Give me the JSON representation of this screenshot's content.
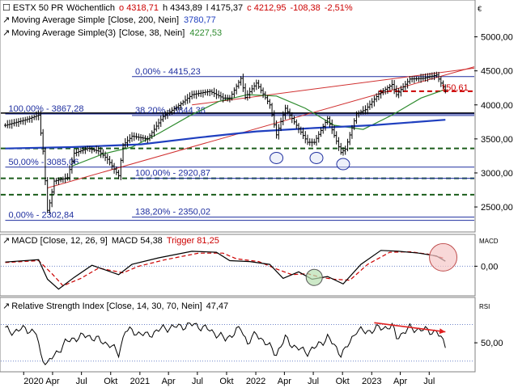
{
  "chart_data": [
    {
      "type": "candlestick",
      "panel": "price",
      "header": {
        "instrument": "ESTX 50 PR",
        "period": "Wöchentlich",
        "open": "o 4318,71",
        "high": "h 4343,89",
        "low": "l 4175,37",
        "close": "c 4212,95",
        "change": "-108,38",
        "change_pct": "-2,51%",
        "currency": "€"
      },
      "indicators": [
        {
          "label": "Moving Average Simple",
          "params": "[Close, 200, Nein]",
          "value": "3780,77",
          "color": "#1f3fbf"
        },
        {
          "label": "Moving Average Simple(3)",
          "params": "[Close, 38, Nein]",
          "value": "4227,53",
          "color": "#2e8b2e"
        }
      ],
      "y_ticks": [
        "5000,00",
        "4500,00",
        "4000,00",
        "3500,00",
        "3000,00",
        "2500,00"
      ],
      "ylim": [
        2180,
        5280
      ],
      "x_ticks": [
        "2020",
        "Apr",
        "Jul",
        "Okt",
        "2021",
        "Apr",
        "Jul",
        "Okt",
        "2022",
        "Apr",
        "Jul",
        "Okt",
        "2023",
        "Apr",
        "Jul"
      ],
      "x_tick_dates": [
        "2020-01-01",
        "2020-04-01",
        "2020-07-01",
        "2020-10-01",
        "2021-01-01",
        "2021-04-01",
        "2021-07-01",
        "2021-10-01",
        "2022-01-01",
        "2022-04-01",
        "2022-07-01",
        "2022-10-01",
        "2023-01-01",
        "2023-04-01",
        "2023-07-01"
      ],
      "xlim": [
        "2019-10-21",
        "2023-11-20"
      ],
      "grid": false,
      "close_series": [
        [
          "2019-11-04",
          3700
        ],
        [
          "2020-01-06",
          3780
        ],
        [
          "2020-02-17",
          3850
        ],
        [
          "2020-03-02",
          3320
        ],
        [
          "2020-03-16",
          2450
        ],
        [
          "2020-03-23",
          2560
        ],
        [
          "2020-04-06",
          2880
        ],
        [
          "2020-05-18",
          2930
        ],
        [
          "2020-06-08",
          3290
        ],
        [
          "2020-07-20",
          3360
        ],
        [
          "2020-08-24",
          3320
        ],
        [
          "2020-09-21",
          3200
        ],
        [
          "2020-10-26",
          2960
        ],
        [
          "2020-11-09",
          3410
        ],
        [
          "2020-12-07",
          3540
        ],
        [
          "2021-01-25",
          3500
        ],
        [
          "2021-03-15",
          3830
        ],
        [
          "2021-05-03",
          3990
        ],
        [
          "2021-06-14",
          4150
        ],
        [
          "2021-08-09",
          4200
        ],
        [
          "2021-09-20",
          4100
        ],
        [
          "2021-10-11",
          4100
        ],
        [
          "2021-11-15",
          4390
        ],
        [
          "2021-11-29",
          4110
        ],
        [
          "2022-01-03",
          4320
        ],
        [
          "2022-02-14",
          4000
        ],
        [
          "2022-03-07",
          3560
        ],
        [
          "2022-04-04",
          3950
        ],
        [
          "2022-05-09",
          3700
        ],
        [
          "2022-06-13",
          3450
        ],
        [
          "2022-07-04",
          3450
        ],
        [
          "2022-08-15",
          3800
        ],
        [
          "2022-09-26",
          3300
        ],
        [
          "2022-10-10",
          3350
        ],
        [
          "2022-11-14",
          3870
        ],
        [
          "2022-12-12",
          3930
        ],
        [
          "2023-01-23",
          4160
        ],
        [
          "2023-03-06",
          4300
        ],
        [
          "2023-03-20",
          4150
        ],
        [
          "2023-05-01",
          4380
        ],
        [
          "2023-06-12",
          4390
        ],
        [
          "2023-07-24",
          4440
        ],
        [
          "2023-08-07",
          4320
        ],
        [
          "2023-08-21",
          4213
        ]
      ],
      "ma200_series": [
        [
          "2019-11-04",
          3360
        ],
        [
          "2020-06-01",
          3380
        ],
        [
          "2021-01-04",
          3420
        ],
        [
          "2021-07-05",
          3520
        ],
        [
          "2022-01-03",
          3610
        ],
        [
          "2022-07-04",
          3660
        ],
        [
          "2023-01-02",
          3700
        ],
        [
          "2023-08-21",
          3781
        ]
      ],
      "ma38_series": [
        [
          "2020-06-01",
          3100
        ],
        [
          "2020-09-07",
          3280
        ],
        [
          "2020-12-07",
          3380
        ],
        [
          "2021-03-01",
          3580
        ],
        [
          "2021-06-07",
          3840
        ],
        [
          "2021-09-06",
          4050
        ],
        [
          "2021-12-06",
          4150
        ],
        [
          "2022-03-07",
          4130
        ],
        [
          "2022-06-06",
          3950
        ],
        [
          "2022-09-05",
          3700
        ],
        [
          "2022-12-05",
          3640
        ],
        [
          "2023-03-06",
          3850
        ],
        [
          "2023-06-05",
          4100
        ],
        [
          "2023-08-21",
          4228
        ]
      ],
      "fibonacci": [
        {
          "label": "0,00% - 4415,23",
          "value": 4415.23,
          "from": "2020-12-07"
        },
        {
          "label": "38,20% - 3844,38",
          "value": 3844.38,
          "from": "2020-12-07"
        },
        {
          "label": "100,00% - 2920,87",
          "value": 2920.87,
          "from": "2020-12-07"
        },
        {
          "label": "138,20% - 2350,02",
          "value": 2350.02,
          "from": "2020-12-07"
        },
        {
          "label": "100,00% - 3867,28",
          "value": 3867.28,
          "from": "2019-11-04"
        },
        {
          "label": "50,00% - 3085,06",
          "value": 3085.06,
          "from": "2019-11-04"
        },
        {
          "label": "0,00% - 2302,84",
          "value": 2302.84,
          "from": "2019-11-04"
        }
      ],
      "horizontal_lines": [
        {
          "value": 3880,
          "style": "solid",
          "color": "#000000"
        },
        {
          "value": 3360,
          "style": "dashed",
          "color": "#1a5c1a"
        },
        {
          "value": 2920.87,
          "style": "dashed",
          "color": "#1a5c1a"
        },
        {
          "value": 2680,
          "style": "dashed",
          "color": "#1a5c1a"
        },
        {
          "value": 4200,
          "style": "dashed",
          "color": "#cc0000",
          "from": "2023-01-23"
        }
      ],
      "trend_lines": [
        {
          "from": [
            "2020-03-16",
            2780
          ],
          "to": [
            "2023-11-20",
            4560
          ],
          "color": "#d03030"
        },
        {
          "from": [
            "2021-06-14",
            4000
          ],
          "to": [
            "2023-11-20",
            4540
          ],
          "color": "#d03030"
        }
      ],
      "annotation": {
        "label": "150,61",
        "value": 4260
      },
      "markers": [
        {
          "type": "circle",
          "date": "2022-03-07",
          "value": 3220
        },
        {
          "type": "circle",
          "date": "2022-07-11",
          "value": 3220
        },
        {
          "type": "circle",
          "date": "2022-10-03",
          "value": 3130
        }
      ]
    },
    {
      "type": "line",
      "panel": "macd",
      "title": "MACD [Close, 12, 26, 9]",
      "macd_label": "MACD 54,38",
      "trigger_label": "Trigger 81,25",
      "side_label": "MACD",
      "y_ticks": [
        "0,00"
      ],
      "ylim": [
        -300,
        220
      ],
      "series": [
        {
          "name": "MACD",
          "color": "#000000",
          "points": [
            [
              "2019-11-04",
              45
            ],
            [
              "2020-02-17",
              70
            ],
            [
              "2020-03-16",
              -140
            ],
            [
              "2020-04-20",
              -245
            ],
            [
              "2020-06-08",
              -120
            ],
            [
              "2020-08-03",
              10
            ],
            [
              "2020-10-26",
              -90
            ],
            [
              "2020-12-07",
              20
            ],
            [
              "2021-03-01",
              90
            ],
            [
              "2021-06-14",
              160
            ],
            [
              "2021-08-30",
              150
            ],
            [
              "2021-10-11",
              60
            ],
            [
              "2021-12-13",
              50
            ],
            [
              "2022-02-14",
              20
            ],
            [
              "2022-03-28",
              -130
            ],
            [
              "2022-05-16",
              -60
            ],
            [
              "2022-06-27",
              -140
            ],
            [
              "2022-08-15",
              -110
            ],
            [
              "2022-10-03",
              -190
            ],
            [
              "2022-11-28",
              20
            ],
            [
              "2023-01-30",
              170
            ],
            [
              "2023-03-27",
              160
            ],
            [
              "2023-05-29",
              140
            ],
            [
              "2023-07-24",
              110
            ],
            [
              "2023-08-21",
              54
            ]
          ]
        },
        {
          "name": "Trigger",
          "color": "#cc0000",
          "points": [
            [
              "2019-11-04",
              40
            ],
            [
              "2020-02-17",
              60
            ],
            [
              "2020-03-30",
              -80
            ],
            [
              "2020-05-04",
              -210
            ],
            [
              "2020-06-29",
              -130
            ],
            [
              "2020-08-24",
              -20
            ],
            [
              "2020-11-09",
              -70
            ],
            [
              "2020-12-28",
              0
            ],
            [
              "2021-03-22",
              70
            ],
            [
              "2021-07-05",
              140
            ],
            [
              "2021-09-20",
              140
            ],
            [
              "2021-11-01",
              80
            ],
            [
              "2022-01-10",
              50
            ],
            [
              "2022-03-07",
              -30
            ],
            [
              "2022-04-25",
              -90
            ],
            [
              "2022-06-13",
              -80
            ],
            [
              "2022-07-25",
              -120
            ],
            [
              "2022-09-05",
              -140
            ],
            [
              "2022-10-24",
              -150
            ],
            [
              "2022-12-19",
              20
            ],
            [
              "2023-02-27",
              150
            ],
            [
              "2023-05-01",
              155
            ],
            [
              "2023-06-26",
              130
            ],
            [
              "2023-08-21",
              81
            ]
          ]
        }
      ],
      "zero_line": {
        "value": 0,
        "style": "dotted"
      },
      "markers": [
        {
          "type": "circle",
          "date": "2022-07-04",
          "value": -120,
          "fill": "#b8e0b0"
        },
        {
          "type": "circle",
          "date": "2023-08-14",
          "value": 95,
          "fill": "#f5c8c8"
        }
      ]
    },
    {
      "type": "line",
      "panel": "rsi",
      "title": "Relative Strength Index [Close, 14, 30, 70, Nein]",
      "value_label": "47,47",
      "side_label": "RSI",
      "y_ticks": [
        "50,00"
      ],
      "ylim": [
        20,
        82
      ],
      "reference_lines": [
        70,
        30
      ],
      "series": [
        {
          "name": "RSI",
          "color": "#000000",
          "points": [
            [
              "2019-11-04",
              65
            ],
            [
              "2019-12-02",
              62
            ],
            [
              "2020-01-06",
              66
            ],
            [
              "2020-02-10",
              60
            ],
            [
              "2020-02-24",
              36
            ],
            [
              "2020-03-16",
              27
            ],
            [
              "2020-04-06",
              36
            ],
            [
              "2020-05-11",
              50
            ],
            [
              "2020-06-08",
              55
            ],
            [
              "2020-07-20",
              58
            ],
            [
              "2020-08-17",
              54
            ],
            [
              "2020-09-28",
              48
            ],
            [
              "2020-10-26",
              38
            ],
            [
              "2020-11-16",
              64
            ],
            [
              "2020-12-14",
              62
            ],
            [
              "2021-01-25",
              58
            ],
            [
              "2021-03-15",
              66
            ],
            [
              "2021-05-10",
              68
            ],
            [
              "2021-06-21",
              70
            ],
            [
              "2021-08-09",
              64
            ],
            [
              "2021-09-27",
              54
            ],
            [
              "2021-11-15",
              66
            ],
            [
              "2021-12-06",
              50
            ],
            [
              "2022-01-03",
              60
            ],
            [
              "2022-03-07",
              38
            ],
            [
              "2022-04-04",
              55
            ],
            [
              "2022-05-09",
              44
            ],
            [
              "2022-06-13",
              40
            ],
            [
              "2022-07-04",
              44
            ],
            [
              "2022-08-15",
              56
            ],
            [
              "2022-09-26",
              38
            ],
            [
              "2022-10-10",
              42
            ],
            [
              "2022-11-14",
              64
            ],
            [
              "2022-12-12",
              62
            ],
            [
              "2023-01-23",
              66
            ],
            [
              "2023-03-06",
              68
            ],
            [
              "2023-03-20",
              56
            ],
            [
              "2023-05-01",
              66
            ],
            [
              "2023-06-12",
              64
            ],
            [
              "2023-07-24",
              62
            ],
            [
              "2023-08-07",
              55
            ],
            [
              "2023-08-21",
              47
            ]
          ]
        }
      ],
      "arrow": {
        "from": [
          "2023-01-09",
          72
        ],
        "to": [
          "2023-08-21",
          62
        ],
        "color": "#e02020"
      }
    }
  ]
}
